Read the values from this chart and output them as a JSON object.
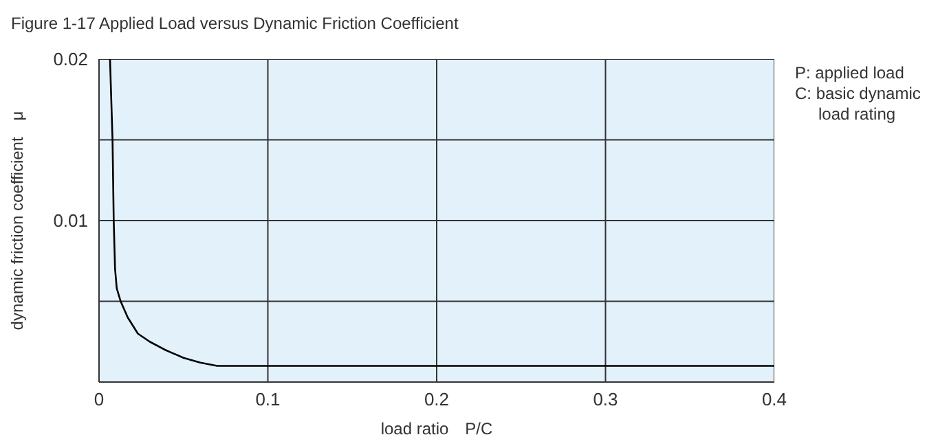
{
  "chart_data": {
    "type": "line",
    "title": "Figure 1-17 Applied Load versus Dynamic Friction Coefficient",
    "xlabel": "load ratio　P/C",
    "ylabel": "dynamic friction coefficient　μ",
    "annotations": [
      "P: applied load",
      "C: basic dynamic load rating"
    ],
    "series": [
      {
        "color": "#000000",
        "x": [
          0.0065,
          0.008,
          0.0087,
          0.0095,
          0.0105,
          0.0128,
          0.017,
          0.023,
          0.03,
          0.039,
          0.05,
          0.06,
          0.07,
          0.4
        ],
        "values": [
          0.02,
          0.015,
          0.01,
          0.007,
          0.0058,
          0.005,
          0.004,
          0.003,
          0.0025,
          0.002,
          0.0015,
          0.0012,
          0.001,
          0.001
        ]
      }
    ],
    "xlim": [
      0,
      0.4
    ],
    "xticks": [
      0,
      0.1,
      0.2,
      0.3,
      0.4
    ],
    "ylim": [
      0,
      0.02
    ],
    "yticks": [
      {
        "value": 0,
        "label": null
      },
      {
        "value": 0.005,
        "label": null
      },
      0.01,
      {
        "value": 0.015,
        "label": null
      },
      0.02
    ],
    "grid": true
  }
}
